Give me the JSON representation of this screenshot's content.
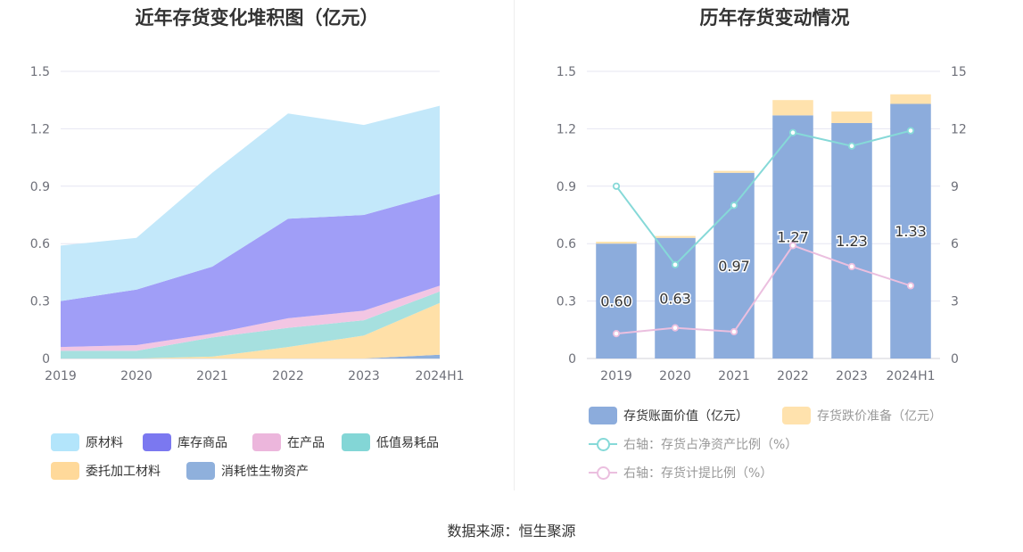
{
  "left_title": "近年存货变化堆积图（亿元）",
  "right_title": "历年存货变动情况",
  "source": "数据来源：恒生聚源",
  "chart_data": [
    {
      "type": "area",
      "stacked": true,
      "title": "近年存货变化堆积图（亿元）",
      "categories": [
        "2019",
        "2020",
        "2021",
        "2022",
        "2023",
        "2024H1"
      ],
      "ylim": [
        0,
        1.5
      ],
      "yticks": [
        "0",
        "0.3",
        "0.6",
        "0.9",
        "1.2",
        "1.5"
      ],
      "grid": true,
      "legend_position": "bottom",
      "series": [
        {
          "name": "消耗性生物资产",
          "color": "#8fb0dc",
          "values": [
            0.0,
            0.0,
            0.0,
            0.0,
            0.0,
            0.02
          ]
        },
        {
          "name": "委托加工材料",
          "color": "#ffe0a8",
          "values": [
            0.0,
            0.0,
            0.01,
            0.06,
            0.12,
            0.27
          ]
        },
        {
          "name": "低值易耗品",
          "color": "#a6e0df",
          "values": [
            0.04,
            0.04,
            0.1,
            0.1,
            0.08,
            0.06
          ]
        },
        {
          "name": "在产品",
          "color": "#f2c6e3",
          "values": [
            0.02,
            0.03,
            0.02,
            0.05,
            0.05,
            0.03
          ]
        },
        {
          "name": "库存商品",
          "color": "#a09ef7",
          "values": [
            0.24,
            0.29,
            0.35,
            0.52,
            0.5,
            0.48
          ]
        },
        {
          "name": "原材料",
          "color": "#c3e8fa",
          "values": [
            0.29,
            0.27,
            0.49,
            0.55,
            0.47,
            0.46
          ]
        }
      ],
      "legend": [
        {
          "name": "原材料",
          "color": "#b3e5fb"
        },
        {
          "name": "库存商品",
          "color": "#7b78f0"
        },
        {
          "name": "在产品",
          "color": "#ecb6dc"
        },
        {
          "name": "低值易耗品",
          "color": "#83d6d6"
        },
        {
          "name": "委托加工材料",
          "color": "#ffd99a"
        },
        {
          "name": "消耗性生物资产",
          "color": "#8fb0dc"
        }
      ]
    },
    {
      "type": "bar",
      "stacked": true,
      "title": "历年存货变动情况",
      "categories": [
        "2019",
        "2020",
        "2021",
        "2022",
        "2023",
        "2024H1"
      ],
      "ylim": [
        0,
        1.5
      ],
      "yticks": [
        "0",
        "0.3",
        "0.6",
        "0.9",
        "1.2",
        "1.5"
      ],
      "y2lim": [
        0,
        15
      ],
      "y2ticks": [
        "0",
        "3",
        "6",
        "9",
        "12",
        "15"
      ],
      "grid": true,
      "legend_position": "bottom",
      "series": [
        {
          "name": "存货账面价值（亿元）",
          "type": "bar",
          "axis": "left",
          "color": "#8cacdc",
          "values": [
            0.6,
            0.63,
            0.97,
            1.27,
            1.23,
            1.33
          ],
          "labels": [
            "0.60",
            "0.63",
            "0.97",
            "1.27",
            "1.23",
            "1.33"
          ]
        },
        {
          "name": "存货跌价准备（亿元）",
          "type": "bar",
          "axis": "left",
          "color": "#ffe2ad",
          "values": [
            0.01,
            0.01,
            0.01,
            0.08,
            0.06,
            0.05
          ]
        },
        {
          "name": "右轴：存货占净资产比例（%）",
          "type": "line",
          "axis": "right",
          "color": "#86d9d8",
          "values": [
            9.0,
            4.9,
            8.0,
            11.8,
            11.1,
            11.9
          ]
        },
        {
          "name": "右轴：存货计提比例（%）",
          "type": "line",
          "axis": "right",
          "color": "#ebbfdf",
          "values": [
            1.3,
            1.6,
            1.4,
            5.9,
            4.8,
            3.8
          ]
        }
      ]
    }
  ]
}
